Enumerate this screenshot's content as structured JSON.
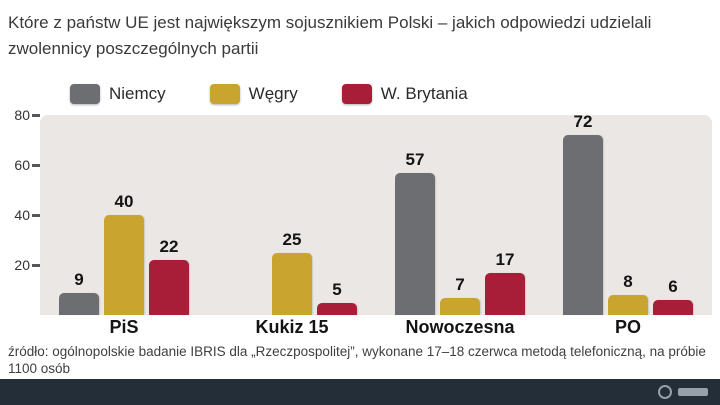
{
  "title": "Które z państw UE jest największym sojusznikiem Polski – jakich odpowiedzi udzielali zwolennicy poszczególnych partii",
  "source": "źródło: ogólnopolskie badanie IBRIS dla „Rzeczpospolitej”, wykonane 17–18 czerwca metodą telefoniczną, na próbie 1100 osób",
  "colors": {
    "plot_background": "#eae7e4",
    "footer_background": "#232e38",
    "niemcy": "#6d6e71",
    "wegry": "#c9a42e",
    "brytania": "#a81e38"
  },
  "chart_data": {
    "type": "bar",
    "title": "Które z państw UE jest największym sojusznikiem Polski – jakich odpowiedzi udzielali zwolennicy poszczególnych partii",
    "categories": [
      "PiS",
      "Kukiz 15",
      "Nowoczesna",
      "PO"
    ],
    "series": [
      {
        "name": "Niemcy",
        "color": "#6d6e71",
        "values": [
          9,
          null,
          57,
          72
        ]
      },
      {
        "name": "Węgry",
        "color": "#c9a42e",
        "values": [
          40,
          25,
          7,
          8
        ]
      },
      {
        "name": "W. Brytania",
        "color": "#a81e38",
        "values": [
          22,
          5,
          17,
          6
        ]
      }
    ],
    "xlabel": "",
    "ylabel": "",
    "ylim": [
      0,
      80
    ],
    "yticks": [
      20,
      40,
      60,
      80
    ],
    "grid": false,
    "legend_position": "top"
  }
}
